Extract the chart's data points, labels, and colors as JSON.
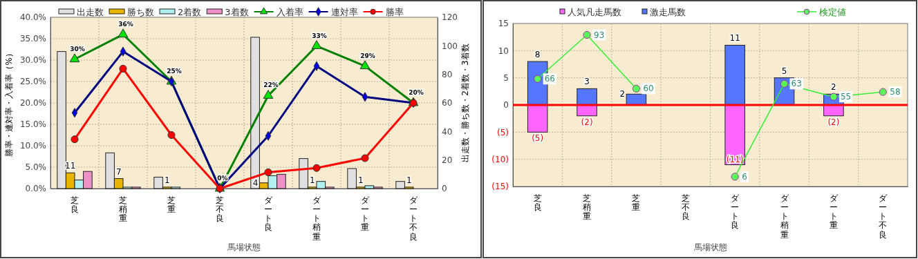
{
  "chart_data": [
    {
      "type": "bar",
      "xlabel": "馬場状態",
      "ylabel": "勝率・連対率・入着率（%）",
      "y2label": "出走数・勝ち数・2着数・3着数",
      "categories": [
        "芝良",
        "芝稍重",
        "芝重",
        "芝不良",
        "ダート良",
        "ダート稍重",
        "ダート重",
        "ダート不良"
      ],
      "series": [
        {
          "name": "出走数",
          "type": "bar",
          "axis": "y2",
          "color": "#e0e0e0",
          "values": [
            96,
            25,
            8,
            0,
            106,
            21,
            14,
            5
          ]
        },
        {
          "name": "勝ち数",
          "type": "bar",
          "axis": "y2",
          "color": "#e8b400",
          "values": [
            11,
            7,
            1,
            0,
            4,
            1,
            1,
            1
          ],
          "value_labels": [
            "11",
            "7",
            "1",
            null,
            "4",
            "1",
            "1",
            "1"
          ]
        },
        {
          "name": "2着数",
          "type": "bar",
          "axis": "y2",
          "color": "#b0f0f0",
          "values": [
            6,
            1,
            1,
            0,
            9,
            5,
            2,
            0
          ]
        },
        {
          "name": "3着数",
          "type": "bar",
          "axis": "y2",
          "color": "#f090c8",
          "values": [
            12,
            1,
            0,
            0,
            10,
            1,
            1,
            0
          ]
        },
        {
          "name": "入着率",
          "type": "line",
          "axis": "y",
          "color": "#008000",
          "marker": "triangle",
          "values": [
            30.2,
            36,
            25,
            0,
            21.7,
            33.3,
            28.6,
            20
          ],
          "value_labels": [
            "30%",
            "36%",
            "25%",
            "0%",
            "22%",
            "33%",
            "29%",
            "20%"
          ]
        },
        {
          "name": "連対率",
          "type": "line",
          "axis": "y",
          "color": "#000080",
          "marker": "diamond",
          "values": [
            17.7,
            32,
            25,
            0,
            12.3,
            28.6,
            21.4,
            20
          ]
        },
        {
          "name": "勝率",
          "type": "line",
          "axis": "y",
          "color": "#ff0000",
          "marker": "circle",
          "values": [
            11.5,
            28,
            12.5,
            0,
            3.8,
            4.8,
            7.1,
            20
          ]
        }
      ],
      "ylim": [
        0,
        40
      ],
      "yticks": [
        {
          "value": 0,
          "label": "0.0%"
        },
        {
          "value": 5,
          "label": "5.0%"
        },
        {
          "value": 10,
          "label": "10.0%"
        },
        {
          "value": 15,
          "label": "15.0%"
        },
        {
          "value": 20,
          "label": "20.0%"
        },
        {
          "value": 25,
          "label": "25.0%"
        },
        {
          "value": 30,
          "label": "30.0%"
        },
        {
          "value": 35,
          "label": "35.0%"
        },
        {
          "value": 40,
          "label": "40.0%"
        }
      ],
      "y2lim": [
        0,
        120
      ],
      "y2ticks": [
        0,
        20,
        40,
        60,
        80,
        100,
        120
      ],
      "grid": true,
      "legend": "top"
    },
    {
      "type": "bar",
      "xlabel": "馬場状態",
      "stacked": true,
      "categories": [
        "芝良",
        "芝稍重",
        "芝重",
        "芝不良",
        "ダート良",
        "ダート稍重",
        "ダート重",
        "ダート不良"
      ],
      "series": [
        {
          "name": "人気凡走馬数",
          "type": "bar",
          "axis": "y",
          "color": "#ff66ff",
          "values": [
            -5,
            -2,
            0,
            0,
            -11,
            0,
            -2,
            0
          ],
          "value_labels": [
            "(5)",
            "(2)",
            null,
            null,
            "(11)",
            null,
            "(2)",
            null
          ]
        },
        {
          "name": "激走馬数",
          "type": "bar",
          "axis": "y",
          "color": "#5577ff",
          "values": [
            8,
            3,
            2,
            0,
            11,
            5,
            2,
            0
          ],
          "value_labels": [
            "8",
            "3",
            "2",
            null,
            "11",
            "5",
            "2",
            null
          ]
        },
        {
          "name": "検定値",
          "type": "line",
          "axis": "y2",
          "color": "#33ee33",
          "marker": "circle",
          "values": [
            66,
            93,
            60,
            null,
            6,
            63,
            55,
            58
          ],
          "value_labels": [
            "66",
            "93",
            "60",
            null,
            "6",
            "63",
            "55",
            "58"
          ]
        }
      ],
      "ylim": [
        -15,
        15
      ],
      "yticks": [
        {
          "value": -15,
          "label": "(15)"
        },
        {
          "value": -10,
          "label": "(10)"
        },
        {
          "value": -5,
          "label": "(5)"
        },
        0,
        5,
        10,
        15
      ],
      "y2lim": [
        0,
        100
      ],
      "ref_lines": [
        {
          "axis": "y",
          "value": 0,
          "color": "#ff0000"
        }
      ],
      "grid": true,
      "legend": "top"
    }
  ]
}
